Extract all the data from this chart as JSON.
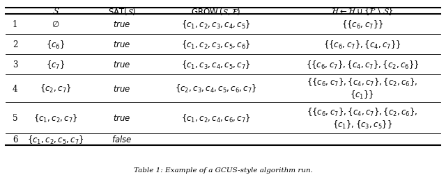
{
  "caption": "Table 1: Example of a GCUS-style algorithm run.",
  "background": "#ffffff",
  "text_color": "#000000",
  "rows": [
    {
      "num": "1",
      "S": "$\\emptyset$",
      "sat": "true",
      "grow": "$\\{c_1, c_2, c_3, c_4, c_5\\}$",
      "H1": "$\\{\\{c_6, c_7\\}\\}$",
      "H2": ""
    },
    {
      "num": "2",
      "S": "$\\{c_6\\}$",
      "sat": "true",
      "grow": "$\\{c_1, c_2, c_3, c_5, c_6\\}$",
      "H1": "$\\{\\{c_6, c_7\\}, \\{c_4, c_7\\}\\}$",
      "H2": ""
    },
    {
      "num": "3",
      "S": "$\\{c_7\\}$",
      "sat": "true",
      "grow": "$\\{c_1, c_3, c_4, c_5, c_7\\}$",
      "H1": "$\\{\\{c_6, c_7\\}, \\{c_4, c_7\\}, \\{c_2, c_6\\}\\}$",
      "H2": ""
    },
    {
      "num": "4",
      "S": "$\\{c_2, c_7\\}$",
      "sat": "true",
      "grow": "$\\{c_2, c_3, c_4, c_5, c_6, c_7\\}$",
      "H1": "$\\{\\{c_6, c_7\\}, \\{c_4, c_7\\}, \\{c_2, c_6\\},$",
      "H2": "$\\{c_1\\}\\}$"
    },
    {
      "num": "5",
      "S": "$\\{c_1, c_2, c_7\\}$",
      "sat": "true",
      "grow": "$\\{c_1, c_2, c_4, c_6, c_7\\}$",
      "H1": "$\\{\\{c_6, c_7\\}, \\{c_4, c_7\\}, \\{c_2, c_6\\},$",
      "H2": "$\\{c_1\\}, \\{c_3, c_5\\}\\}$"
    },
    {
      "num": "6",
      "S": "$\\{c_1, c_2, c_5, c_7\\}$",
      "sat": "false",
      "grow": "",
      "H1": "",
      "H2": ""
    }
  ]
}
